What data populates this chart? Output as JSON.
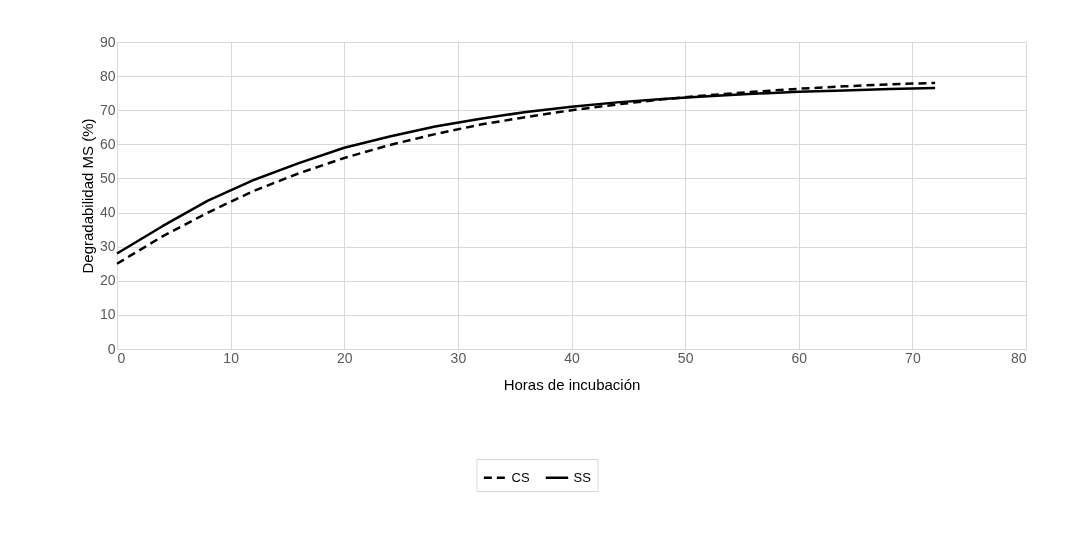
{
  "chart_data": {
    "type": "line",
    "xlabel": "Horas de incubación",
    "ylabel": "Degradabilidad MS (%)",
    "x": [
      0,
      4,
      8,
      12,
      16,
      20,
      24,
      28,
      32,
      36,
      40,
      44,
      48,
      52,
      56,
      60,
      64,
      68,
      72
    ],
    "series": [
      {
        "name": "CS",
        "color": "#000000",
        "line_style": "dashed",
        "values": [
          25,
          33,
          40,
          46.3,
          51.5,
          56,
          59.8,
          63,
          65.8,
          68,
          70,
          71.7,
          73.2,
          74.4,
          75.4,
          76.3,
          77,
          77.6,
          78
        ]
      },
      {
        "name": "SS",
        "color": "#000000",
        "line_style": "solid",
        "values": [
          28,
          36,
          43.5,
          49.5,
          54.5,
          59,
          62.3,
          65.2,
          67.5,
          69.5,
          71,
          72.3,
          73.3,
          74.1,
          74.8,
          75.4,
          75.8,
          76.2,
          76.5
        ]
      }
    ],
    "xlim": [
      0,
      80
    ],
    "xticks": [
      0,
      10,
      20,
      30,
      40,
      50,
      60,
      70,
      80
    ],
    "ylim": [
      0,
      90
    ],
    "yticks": [
      0,
      10,
      20,
      30,
      40,
      50,
      60,
      70,
      80,
      90
    ],
    "grid": true,
    "legend": "bottom",
    "marker": "none"
  }
}
